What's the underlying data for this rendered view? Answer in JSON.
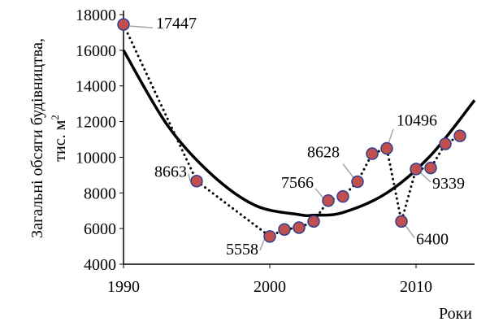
{
  "chart_data": {
    "type": "scatter",
    "xlabel": "Роки",
    "ylabel_line1": "Загальні обсяги будівництва,",
    "ylabel_line2_prefix": "тис. м",
    "ylabel_line2_sup": "2",
    "xlim": [
      1990,
      2014
    ],
    "ylim": [
      4000,
      18000
    ],
    "x_ticks": [
      1990,
      2000,
      2010
    ],
    "y_ticks": [
      4000,
      6000,
      8000,
      10000,
      12000,
      14000,
      16000,
      18000
    ],
    "grid": false,
    "colors": {
      "marker_fill": "#c0504d",
      "marker_stroke": "#2f3f8f",
      "trend": "#000000",
      "dotted": "#000000"
    },
    "series": [
      {
        "x": [
          1990,
          1995,
          2000,
          2001,
          2002,
          2003,
          2004,
          2005,
          2006,
          2007,
          2008,
          2009,
          2010,
          2011,
          2012,
          2013
        ],
        "y": [
          17447,
          8663,
          5558,
          5950,
          6050,
          6400,
          7566,
          7800,
          8628,
          10200,
          10496,
          6400,
          9339,
          9400,
          10750,
          11200
        ]
      }
    ],
    "trend": {
      "x": [
        1990,
        1993,
        1996,
        1999,
        2002,
        2003,
        2005,
        2008,
        2011,
        2014
      ],
      "y": [
        16000,
        11800,
        9050,
        7300,
        6780,
        6750,
        6900,
        8000,
        10100,
        13200
      ]
    },
    "annotations": [
      {
        "text": "17447",
        "x": 1990,
        "y": 17447
      },
      {
        "text": "8663",
        "x": 1995,
        "y": 8663
      },
      {
        "text": "5558",
        "x": 2000,
        "y": 5558
      },
      {
        "text": "7566",
        "x": 2004,
        "y": 7566
      },
      {
        "text": "8628",
        "x": 2006,
        "y": 8628
      },
      {
        "text": "10496",
        "x": 2008,
        "y": 10496
      },
      {
        "text": "6400",
        "x": 2009,
        "y": 6400
      },
      {
        "text": "9339",
        "x": 2010,
        "y": 9339
      }
    ]
  }
}
